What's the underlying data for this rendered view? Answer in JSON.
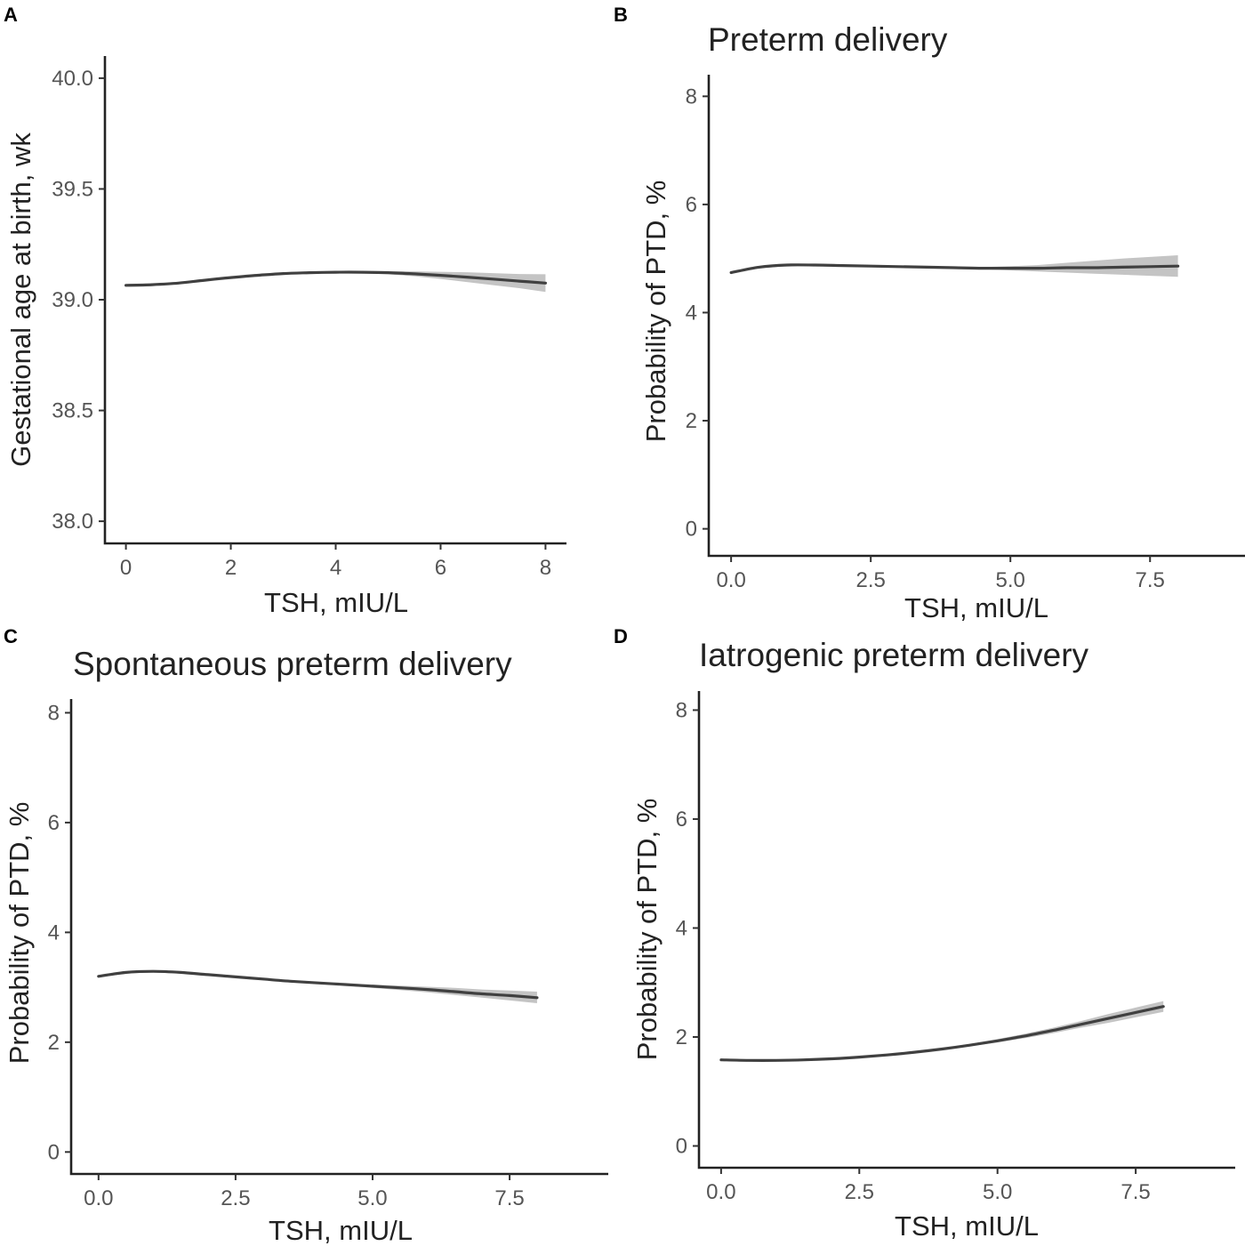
{
  "colors": {
    "line": "#404040",
    "band": "#c4c4c4",
    "axis": "#222222"
  },
  "chart_data": [
    {
      "panel": "A",
      "type": "line",
      "title": "",
      "xlabel": "TSH, mIU/L",
      "ylabel": "Gestational age at birth, wk",
      "xlim": [
        -0.4,
        8.4
      ],
      "ylim": [
        37.9,
        40.1
      ],
      "xticks": [
        0,
        2,
        4,
        6,
        8
      ],
      "xtick_labels": [
        "0",
        "2",
        "4",
        "6",
        "8"
      ],
      "yticks": [
        38.0,
        38.5,
        39.0,
        39.5,
        40.0
      ],
      "ytick_labels": [
        "38.0",
        "38.5",
        "39.0",
        "39.5",
        "40.0"
      ],
      "series": [
        {
          "name": "fit",
          "x": [
            0,
            0.5,
            1,
            1.5,
            2,
            2.5,
            3,
            3.5,
            4,
            4.5,
            5,
            5.5,
            6,
            6.5,
            7,
            7.5,
            8
          ],
          "y": [
            39.065,
            39.068,
            39.075,
            39.088,
            39.1,
            39.11,
            39.118,
            39.122,
            39.124,
            39.124,
            39.122,
            39.117,
            39.11,
            39.102,
            39.093,
            39.084,
            39.075
          ],
          "lower": [
            39.06,
            39.064,
            39.072,
            39.085,
            39.098,
            39.108,
            39.116,
            39.12,
            39.121,
            39.119,
            39.115,
            39.106,
            39.094,
            39.08,
            39.066,
            39.052,
            39.035
          ],
          "upper": [
            39.07,
            39.072,
            39.078,
            39.091,
            39.102,
            39.112,
            39.12,
            39.124,
            39.127,
            39.129,
            39.129,
            39.128,
            39.126,
            39.124,
            39.12,
            39.116,
            39.115
          ]
        }
      ]
    },
    {
      "panel": "B",
      "type": "line",
      "title": "Preterm delivery",
      "xlabel": "TSH, mIU/L",
      "ylabel": "Probability of PTD, %",
      "xlim": [
        -0.4,
        9.2
      ],
      "ylim": [
        -0.5,
        8.4
      ],
      "xticks": [
        0,
        2.5,
        5,
        7.5
      ],
      "xtick_labels": [
        "0.0",
        "2.5",
        "5.0",
        "7.5"
      ],
      "yticks": [
        0,
        2,
        4,
        6,
        8
      ],
      "ytick_labels": [
        "0",
        "2",
        "4",
        "6",
        "8"
      ],
      "series": [
        {
          "name": "fit",
          "x": [
            0,
            0.5,
            1,
            1.5,
            2,
            2.5,
            3,
            3.5,
            4,
            4.5,
            5,
            5.5,
            6,
            6.5,
            7,
            7.5,
            8
          ],
          "y": [
            4.74,
            4.84,
            4.88,
            4.88,
            4.87,
            4.86,
            4.85,
            4.84,
            4.83,
            4.82,
            4.82,
            4.82,
            4.83,
            4.83,
            4.84,
            4.85,
            4.86
          ],
          "lower": [
            4.72,
            4.82,
            4.86,
            4.86,
            4.85,
            4.84,
            4.83,
            4.82,
            4.81,
            4.8,
            4.78,
            4.76,
            4.74,
            4.72,
            4.7,
            4.68,
            4.66
          ],
          "upper": [
            4.76,
            4.86,
            4.9,
            4.9,
            4.89,
            4.88,
            4.87,
            4.86,
            4.85,
            4.84,
            4.86,
            4.88,
            4.92,
            4.96,
            5.0,
            5.03,
            5.06
          ]
        }
      ]
    },
    {
      "panel": "C",
      "type": "line",
      "title": "Spontaneous preterm delivery",
      "xlabel": "TSH, mIU/L",
      "ylabel": "Probability of PTD, %",
      "xlim": [
        -0.5,
        9.3
      ],
      "ylim": [
        -0.4,
        8.25
      ],
      "xticks": [
        0,
        2.5,
        5,
        7.5
      ],
      "xtick_labels": [
        "0.0",
        "2.5",
        "5.0",
        "7.5"
      ],
      "yticks": [
        0,
        2,
        4,
        6,
        8
      ],
      "ytick_labels": [
        "0",
        "2",
        "4",
        "6",
        "8"
      ],
      "series": [
        {
          "name": "fit",
          "x": [
            0,
            0.5,
            1,
            1.5,
            2,
            2.5,
            3,
            3.5,
            4,
            4.5,
            5,
            5.5,
            6,
            6.5,
            7,
            7.5,
            8
          ],
          "y": [
            3.2,
            3.27,
            3.29,
            3.27,
            3.23,
            3.19,
            3.15,
            3.11,
            3.08,
            3.05,
            3.02,
            2.99,
            2.96,
            2.92,
            2.88,
            2.85,
            2.81
          ],
          "lower": [
            3.18,
            3.25,
            3.27,
            3.25,
            3.21,
            3.17,
            3.13,
            3.09,
            3.06,
            3.03,
            2.99,
            2.95,
            2.91,
            2.86,
            2.81,
            2.76,
            2.71
          ],
          "upper": [
            3.22,
            3.29,
            3.31,
            3.29,
            3.25,
            3.21,
            3.17,
            3.13,
            3.1,
            3.07,
            3.05,
            3.03,
            3.01,
            2.99,
            2.96,
            2.94,
            2.92
          ]
        }
      ]
    },
    {
      "panel": "D",
      "type": "line",
      "title": "Iatrogenic preterm delivery",
      "xlabel": "TSH, mIU/L",
      "ylabel": "Probability of PTD, %",
      "xlim": [
        -0.4,
        9.3
      ],
      "ylim": [
        -0.4,
        8.35
      ],
      "xticks": [
        0,
        2.5,
        5,
        7.5
      ],
      "xtick_labels": [
        "0.0",
        "2.5",
        "5.0",
        "7.5"
      ],
      "yticks": [
        0,
        2,
        4,
        6,
        8
      ],
      "ytick_labels": [
        "0",
        "2",
        "4",
        "6",
        "8"
      ],
      "series": [
        {
          "name": "fit",
          "x": [
            0,
            0.5,
            1,
            1.5,
            2,
            2.5,
            3,
            3.5,
            4,
            4.5,
            5,
            5.5,
            6,
            6.5,
            7,
            7.5,
            8
          ],
          "y": [
            1.58,
            1.57,
            1.57,
            1.58,
            1.6,
            1.63,
            1.67,
            1.72,
            1.78,
            1.85,
            1.93,
            2.02,
            2.12,
            2.23,
            2.34,
            2.45,
            2.56
          ],
          "lower": [
            1.56,
            1.55,
            1.55,
            1.56,
            1.58,
            1.61,
            1.65,
            1.7,
            1.76,
            1.83,
            1.9,
            1.98,
            2.07,
            2.17,
            2.26,
            2.36,
            2.46
          ],
          "upper": [
            1.6,
            1.59,
            1.59,
            1.6,
            1.62,
            1.65,
            1.69,
            1.74,
            1.8,
            1.87,
            1.96,
            2.06,
            2.17,
            2.29,
            2.42,
            2.54,
            2.66
          ]
        }
      ]
    }
  ]
}
